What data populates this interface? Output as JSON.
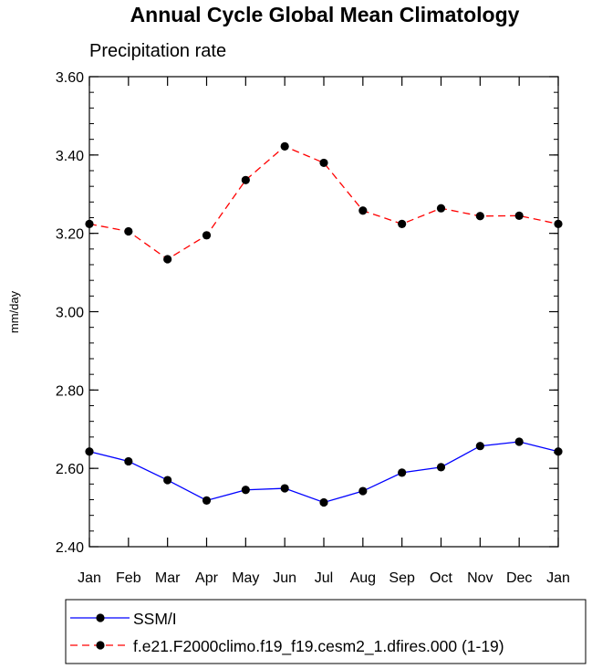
{
  "chart_data": {
    "type": "line",
    "title": "Annual Cycle Global Mean Climatology",
    "subtitle": "Precipitation rate",
    "xlabel": "",
    "ylabel": "mm/day",
    "categories": [
      "Jan",
      "Feb",
      "Mar",
      "Apr",
      "May",
      "Jun",
      "Jul",
      "Aug",
      "Sep",
      "Oct",
      "Nov",
      "Dec",
      "Jan"
    ],
    "ylim": [
      2.4,
      3.6
    ],
    "yticks": [
      2.4,
      2.6,
      2.8,
      3.0,
      3.2,
      3.4,
      3.6
    ],
    "ytick_labels": [
      "2.40",
      "2.60",
      "2.80",
      "3.00",
      "3.20",
      "3.40",
      "3.60"
    ],
    "yminor_step": 0.04,
    "grid": false,
    "legend_position": "bottom",
    "series": [
      {
        "name": "SSM/I",
        "color": "#0000ff",
        "line_style": "solid",
        "marker": "filled-circle",
        "marker_color": "#000000",
        "values": [
          2.643,
          2.618,
          2.57,
          2.518,
          2.545,
          2.549,
          2.513,
          2.542,
          2.589,
          2.603,
          2.657,
          2.668,
          2.643
        ]
      },
      {
        "name": "f.e21.F2000climo.f19_f19.cesm2_1.dfires.000 (1-19)",
        "color": "#ff0000",
        "line_style": "dashed",
        "marker": "filled-circle",
        "marker_color": "#000000",
        "values": [
          3.224,
          3.205,
          3.134,
          3.195,
          3.336,
          3.422,
          3.38,
          3.258,
          3.224,
          3.264,
          3.244,
          3.245,
          3.224
        ]
      }
    ]
  }
}
